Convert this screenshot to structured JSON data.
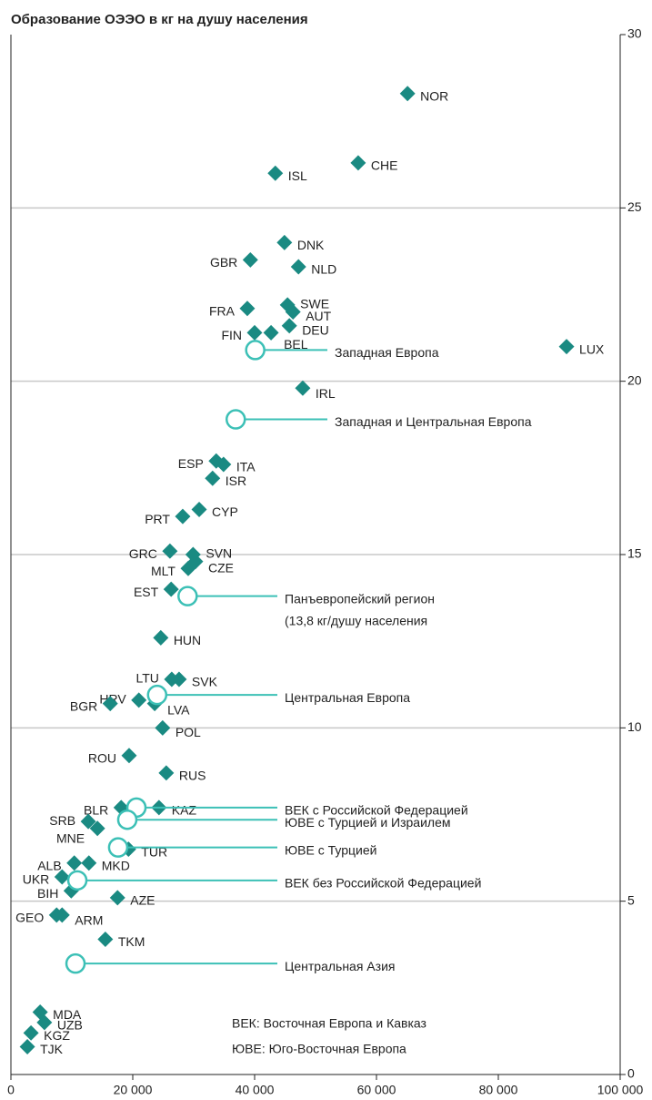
{
  "chart_data": {
    "type": "scatter",
    "title": "Образование ОЭЭО в кг на душу населения",
    "xlim": [
      0,
      100000
    ],
    "ylim": [
      0,
      30
    ],
    "xticks": [
      0,
      {
        "value": 20000,
        "label": "20 000"
      },
      {
        "value": 40000,
        "label": "40 000"
      },
      {
        "value": 60000,
        "label": "60 000"
      },
      {
        "value": 80000,
        "label": "80 000"
      },
      {
        "value": 100000,
        "label": "100 000"
      }
    ],
    "yticks": [
      0,
      5,
      10,
      15,
      20,
      25,
      30
    ],
    "grid": true,
    "series": [
      {
        "color": "#1a8a82",
        "labels": [
          "NOR",
          "CHE",
          "ISL",
          "DNK",
          "GBR",
          "NLD",
          "FRA",
          "SWE",
          "AUT",
          "DEU",
          "BEL",
          "FIN",
          "LUX",
          "IRL",
          "ESP",
          "ITA",
          "ISR",
          "CYP",
          "PRT",
          "GRC",
          "SVN",
          "CZE",
          "MLT",
          "EST",
          "HUN",
          "LTU",
          "SVK",
          "HRV",
          "BGR",
          "LVA",
          "POL",
          "ROU",
          "RUS",
          "BLR",
          "KAZ",
          "SRB",
          "MNE",
          "TUR",
          "ALB",
          "MKD",
          "UKR",
          "BIH",
          "AZE",
          "GEO",
          "ARM",
          "TKM",
          "MDA",
          "UZB",
          "KGZ",
          "TJK"
        ],
        "x": [
          65100,
          57000,
          43400,
          44900,
          39300,
          47200,
          38800,
          45400,
          46300,
          45700,
          42700,
          40000,
          91200,
          47900,
          33700,
          34900,
          33100,
          30900,
          28200,
          26100,
          29900,
          30300,
          29100,
          26300,
          24600,
          26400,
          27600,
          21000,
          16300,
          23600,
          24900,
          19400,
          25500,
          18100,
          24300,
          12700,
          14200,
          19300,
          10400,
          12800,
          8400,
          9900,
          17500,
          7500,
          8400,
          15500,
          4800,
          5500,
          3300,
          2700
        ],
        "values": [
          28.3,
          26.3,
          26.0,
          24.0,
          23.5,
          23.3,
          22.1,
          22.2,
          22.0,
          21.6,
          21.4,
          21.4,
          21.0,
          19.8,
          17.7,
          17.6,
          17.2,
          16.3,
          16.1,
          15.1,
          15.0,
          14.8,
          14.6,
          14.0,
          12.6,
          11.4,
          11.4,
          10.8,
          10.7,
          10.7,
          10.0,
          9.2,
          8.7,
          7.7,
          7.7,
          7.3,
          7.1,
          6.5,
          6.1,
          6.1,
          5.7,
          5.3,
          5.1,
          4.6,
          4.6,
          3.9,
          1.8,
          1.5,
          1.2,
          0.8
        ]
      },
      {
        "color": "#3cc0b6",
        "labels": [
          "Западная Европа",
          "Западная и Центральная Европа",
          "Панъевропейский регион",
          "Центральная Европа",
          "ВЕК с Российской Федерацией",
          "ЮВЕ с Турцией и Израилем",
          "ЮВЕ с Турцией",
          "ВЕК без Российской Федерацией",
          "Центральная Азия"
        ],
        "label_notes": {
          "2": "(13,8 кг/душу населения"
        },
        "x": [
          40100,
          36900,
          29000,
          24000,
          20600,
          19100,
          17600,
          10900,
          10600
        ],
        "values": [
          20.9,
          18.9,
          13.8,
          10.95,
          7.7,
          7.35,
          6.55,
          5.6,
          3.2
        ]
      }
    ],
    "notes": [
      "ВЕК: Восточная Европа и Кавказ",
      "ЮВЕ: Юго-Восточная Европа"
    ]
  }
}
